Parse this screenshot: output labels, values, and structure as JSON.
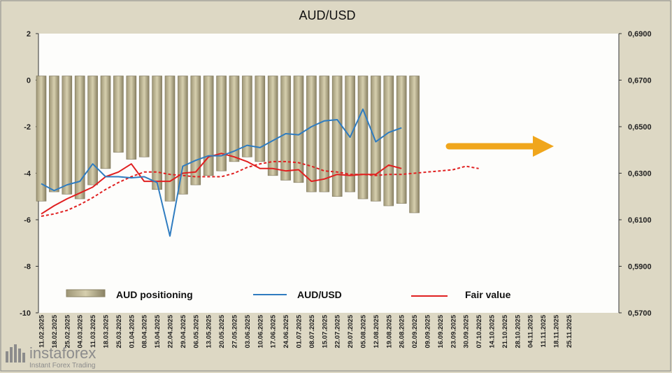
{
  "chart_data": {
    "type": "bar+line",
    "title": "AUD/USD",
    "left_axis": {
      "ylim": [
        -10,
        2
      ],
      "ticks": [
        "2",
        "0",
        "-2",
        "-4",
        "-6",
        "-8",
        "-10"
      ]
    },
    "right_axis": {
      "ylim": [
        0.57,
        0.69
      ],
      "ticks": [
        "0,6900",
        "0,6700",
        "0,6500",
        "0,6300",
        "0,6100",
        "0,5900",
        "0,5700"
      ]
    },
    "x_labels": [
      "11.02.2025",
      "18.02.2025",
      "25.02.2025",
      "04.03.2025",
      "11.03.2025",
      "18.03.2025",
      "25.03.2025",
      "01.04.2025",
      "08.04.2025",
      "15.04.2025",
      "22.04.2025",
      "29.04.2025",
      "06.05.2025",
      "13.05.2025",
      "20.05.2025",
      "27.05.2025",
      "03.06.2025",
      "10.06.2025",
      "17.06.2025",
      "24.06.2025",
      "01.07.2025",
      "08.07.2025",
      "15.07.2025",
      "22.07.2025",
      "29.07.2025",
      "05.08.2025",
      "12.08.2025",
      "19.08.2025",
      "26.08.2025",
      "02.09.2025",
      "09.09.2025",
      "16.09.2025",
      "23.09.2025",
      "30.09.2025",
      "07.10.2025",
      "14.10.2025",
      "21.10.2025",
      "28.10.2025",
      "04.11.2025",
      "11.11.2025",
      "18.11.2025",
      "25.11.2025"
    ],
    "series": [
      {
        "name": "AUD positioning",
        "type": "bar",
        "axis": "left",
        "values": [
          -5.2,
          -4.8,
          -4.9,
          -5.1,
          -4.5,
          -3.8,
          -3.1,
          -3.4,
          -3.3,
          -4.7,
          -5.2,
          -4.9,
          -4.5,
          -4.1,
          -3.9,
          -3.5,
          -3.3,
          -3.5,
          -4.1,
          -4.3,
          -4.4,
          -4.8,
          -4.8,
          -5.0,
          -4.8,
          -5.1,
          -5.2,
          -5.4,
          -5.3,
          -5.7
        ]
      },
      {
        "name": "AUD/USD",
        "type": "line",
        "axis": "right",
        "values": [
          0.6255,
          0.6225,
          0.625,
          0.6265,
          0.634,
          0.6285,
          0.6285,
          0.628,
          0.6285,
          0.626,
          0.603,
          0.633,
          0.6355,
          0.6375,
          0.6375,
          0.6395,
          0.642,
          0.641,
          0.644,
          0.647,
          0.6465,
          0.65,
          0.6525,
          0.653,
          0.6455,
          0.6575,
          0.6435,
          0.6475,
          0.6495
        ]
      },
      {
        "name": "Fair value",
        "type": "line",
        "axis": "right",
        "values": [
          0.6125,
          0.616,
          0.619,
          0.6215,
          0.624,
          0.6285,
          0.6305,
          0.634,
          0.6265,
          0.6265,
          0.6265,
          0.63,
          0.6305,
          0.637,
          0.6385,
          0.637,
          0.635,
          0.632,
          0.632,
          0.631,
          0.6315,
          0.6265,
          0.6275,
          0.6295,
          0.629,
          0.6295,
          0.6295,
          0.6335,
          0.632
        ]
      },
      {
        "name": "Fair value",
        "type": "line",
        "axis": "right",
        "style": "dashed",
        "values": [
          0.6115,
          0.6125,
          0.614,
          0.6165,
          0.6195,
          0.623,
          0.626,
          0.6285,
          0.6305,
          0.6305,
          0.6295,
          0.629,
          0.6285,
          0.6285,
          0.6285,
          0.63,
          0.6325,
          0.634,
          0.635,
          0.635,
          0.6345,
          0.633,
          0.631,
          0.6305,
          0.6295,
          0.6295,
          0.629,
          0.6295,
          0.6295,
          0.63,
          0.6305,
          0.631,
          0.6315,
          0.633,
          0.632
        ]
      }
    ],
    "legend": [
      "AUD positioning",
      "AUD/USD",
      "Fair value"
    ],
    "legend_position": "bottom",
    "annotations": [
      {
        "type": "arrow",
        "direction": "right",
        "color": "#f0a61c"
      }
    ]
  },
  "watermark": {
    "brand": "instaforex",
    "tagline": "Instant Forex Trading"
  }
}
